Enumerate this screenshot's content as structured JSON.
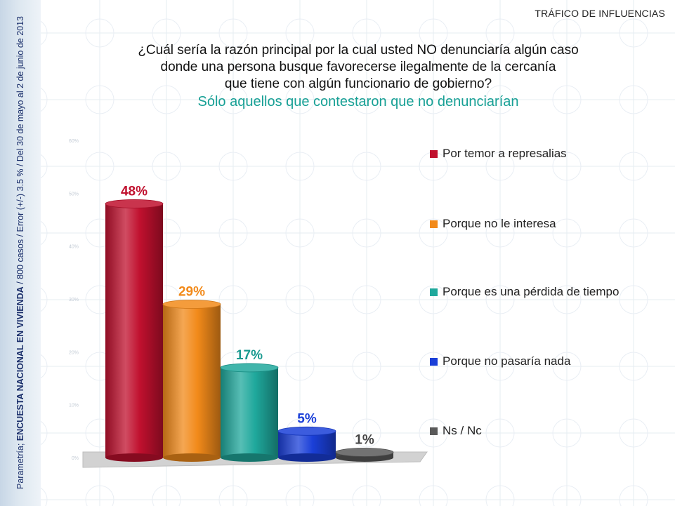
{
  "header": {
    "section": "TRÁFICO DE INFLUENCIAS",
    "question_lines": [
      "¿Cuál sería la razón principal por la cual usted NO denunciaría algún caso",
      "donde una persona busque favorecerse ilegalmente de la cercanía",
      "que tiene con algún funcionario de gobierno?"
    ],
    "subtitle": "Sólo aquellos que contestaron que no denunciarían"
  },
  "sidebar": {
    "source": "Parametría; ",
    "survey": "ENCUESTA NACIONAL EN VIVIENDA",
    "details": " / 800 casos / Error (+/-) 3.5 % / Del 30 de mayo al 2  de junio de 2013"
  },
  "watermark": "Parametría",
  "chart_data": {
    "type": "bar",
    "categories": [
      "Por temor a represalias",
      "Porque no le interesa",
      "Porque es una pérdida de tiempo",
      "Porque no pasaría nada",
      "Ns / Nc"
    ],
    "values": [
      48,
      29,
      17,
      5,
      1
    ],
    "value_labels": [
      "48%",
      "29%",
      "17%",
      "5%",
      "1%"
    ],
    "colors": [
      "#c0102e",
      "#f28a1a",
      "#1fa89c",
      "#1a3fd8",
      "#5a5a5a"
    ],
    "label_colors": [
      "#c0102e",
      "#f28a1a",
      "#1a9a90",
      "#1a3fd8",
      "#444444"
    ],
    "ylim": [
      0,
      60
    ],
    "y_ticks": [
      "0%",
      "10%",
      "20%",
      "30%",
      "40%",
      "50%",
      "60%"
    ],
    "legend_position": "right",
    "grid": false
  }
}
